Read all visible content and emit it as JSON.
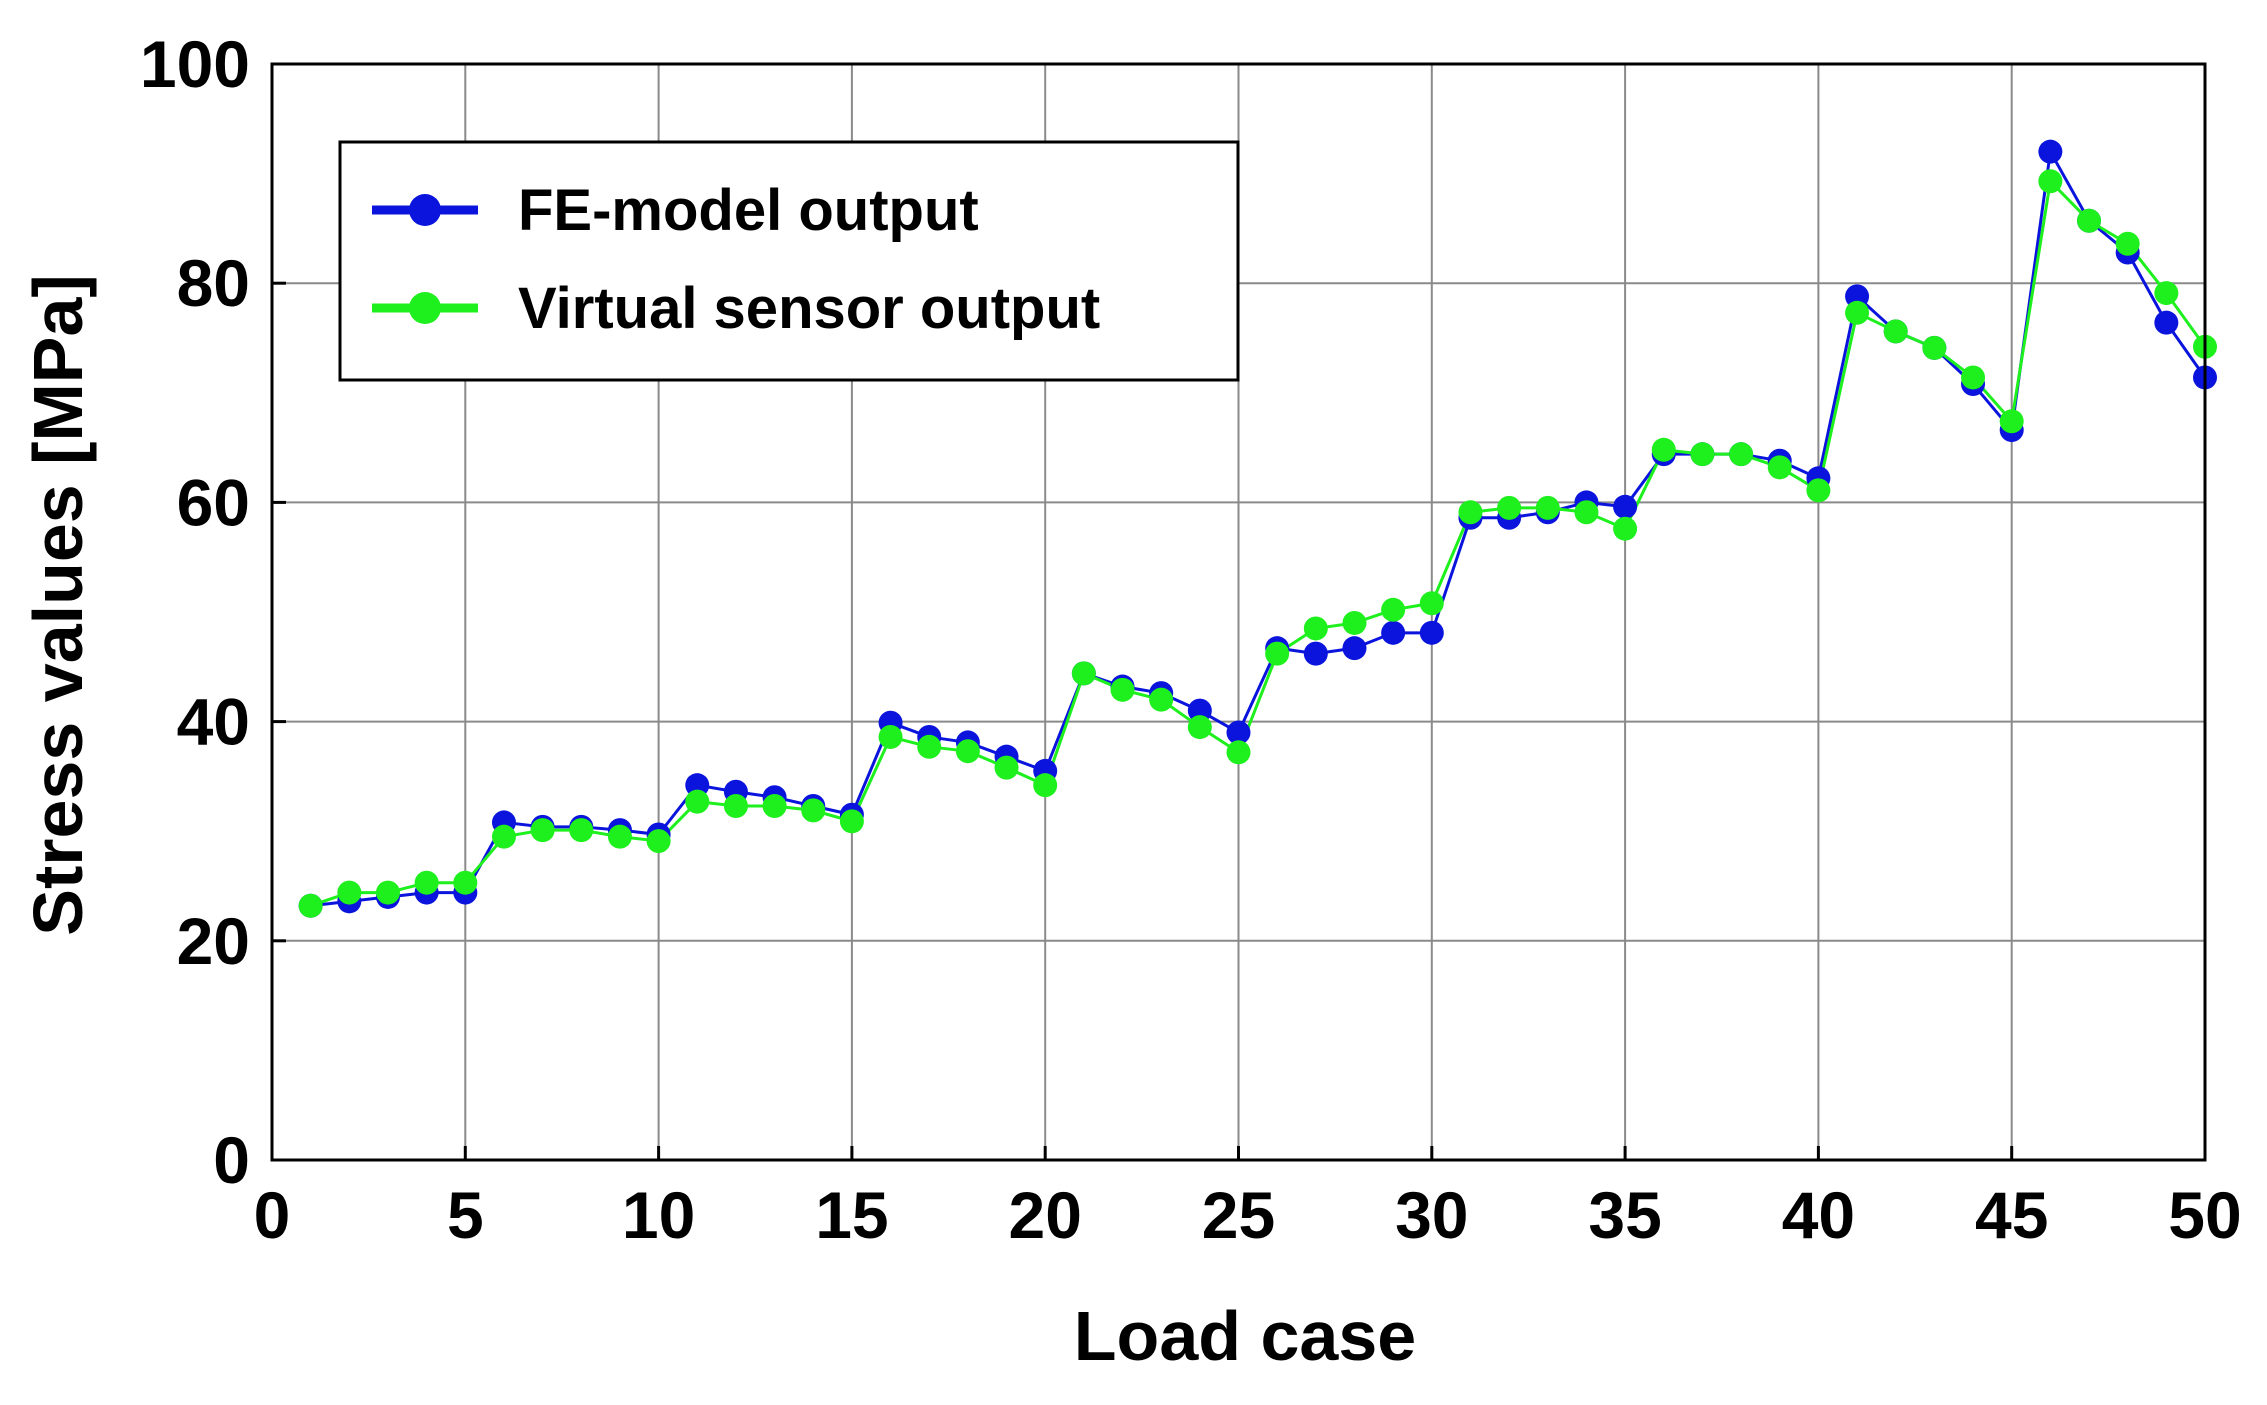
{
  "colors": {
    "fe": "#0a14dc",
    "virtual": "#1ef01e",
    "grid": "#8a8a8a",
    "axis": "#000000"
  },
  "chart_data": {
    "type": "line",
    "title": "",
    "xlabel": "Load case",
    "ylabel": "Stress values [MPa]",
    "xlim": [
      0,
      50
    ],
    "ylim": [
      0,
      100
    ],
    "xticks": [
      0,
      5,
      10,
      15,
      20,
      25,
      30,
      35,
      40,
      45,
      50
    ],
    "yticks": [
      0,
      20,
      40,
      60,
      80,
      100
    ],
    "xtick_labels": [
      "0",
      "5",
      "10",
      "15",
      "20",
      "25",
      "30",
      "35",
      "40",
      "45",
      "50"
    ],
    "ytick_labels": [
      "0",
      "20",
      "40",
      "60",
      "80",
      "100"
    ],
    "grid": true,
    "legend_position": "top-left",
    "x": [
      1,
      2,
      3,
      4,
      5,
      6,
      7,
      8,
      9,
      10,
      11,
      12,
      13,
      14,
      15,
      16,
      17,
      18,
      19,
      20,
      21,
      22,
      23,
      24,
      25,
      26,
      27,
      28,
      29,
      30,
      31,
      32,
      33,
      34,
      35,
      36,
      37,
      38,
      39,
      40,
      41,
      42,
      43,
      44,
      45,
      46,
      47,
      48,
      49,
      50
    ],
    "series": [
      {
        "name": "FE-model output",
        "color_key": "fe",
        "values": [
          23.2,
          23.6,
          24.0,
          24.4,
          24.4,
          30.8,
          30.4,
          30.4,
          30.1,
          29.7,
          34.2,
          33.6,
          33.1,
          32.3,
          31.5,
          39.9,
          38.6,
          38.1,
          36.8,
          35.5,
          44.4,
          43.2,
          42.6,
          41.0,
          39.0,
          46.7,
          46.2,
          46.7,
          48.1,
          48.1,
          58.6,
          58.6,
          59.1,
          60.0,
          59.6,
          64.4,
          64.4,
          64.4,
          63.8,
          62.2,
          78.8,
          75.6,
          74.1,
          70.8,
          66.6,
          92.0,
          85.7,
          82.8,
          76.4,
          71.4
        ]
      },
      {
        "name": "Virtual sensor output",
        "color_key": "virtual",
        "values": [
          23.2,
          24.4,
          24.4,
          25.3,
          25.3,
          29.5,
          30.1,
          30.1,
          29.5,
          29.1,
          32.7,
          32.3,
          32.3,
          31.9,
          30.9,
          38.6,
          37.7,
          37.3,
          35.8,
          34.2,
          44.4,
          42.9,
          42.0,
          39.5,
          37.2,
          46.2,
          48.5,
          49.0,
          50.2,
          50.8,
          59.1,
          59.5,
          59.5,
          59.1,
          57.6,
          64.8,
          64.4,
          64.4,
          63.2,
          61.1,
          77.3,
          75.6,
          74.1,
          71.4,
          67.4,
          89.3,
          85.7,
          83.6,
          79.1,
          74.2
        ]
      }
    ]
  }
}
